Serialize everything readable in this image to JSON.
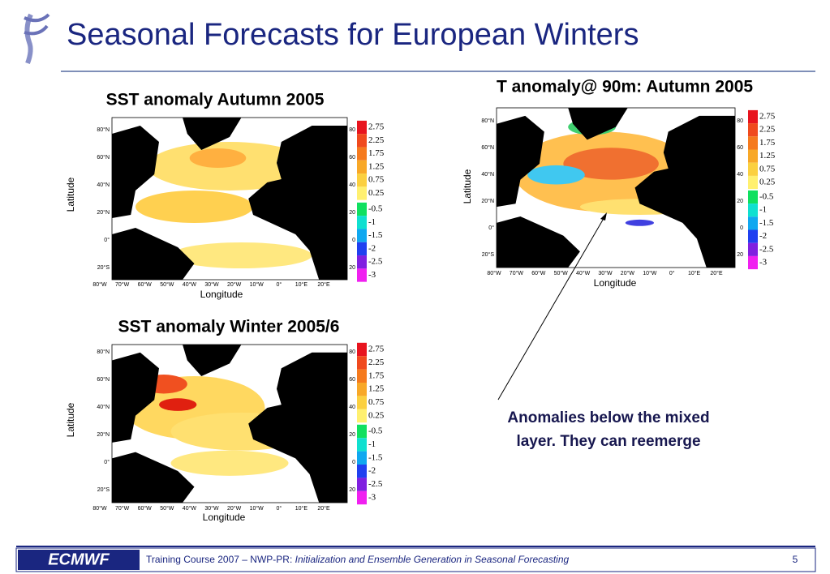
{
  "header": {
    "title": "Seasonal Forecasts for European Winters"
  },
  "panels": [
    {
      "title": "SST anomaly Autumn 2005",
      "ylabel": "Latitude",
      "xlabel": "Longitude",
      "lat_labels": [
        "80°N",
        "60°N",
        "40°N",
        "20°N",
        "0°",
        "20°S"
      ],
      "lat_right": [
        "80",
        "60",
        "40",
        "20",
        "0",
        "20"
      ],
      "lon_labels": [
        "80°W",
        "70°W",
        "60°W",
        "50°W",
        "40°W",
        "30°W",
        "20°W",
        "10°W",
        "0°",
        "10°E",
        "20°E"
      ],
      "warm": [
        "2.75",
        "2.25",
        "1.75",
        "1.25",
        "0.75",
        "0.25"
      ],
      "cold": [
        "-0.5",
        "-1",
        "-1.5",
        "-2",
        "-2.5",
        "-3"
      ]
    },
    {
      "title": "SST anomaly Winter 2005/6",
      "ylabel": "Latitude",
      "xlabel": "Longitude",
      "lat_labels": [
        "80°N",
        "60°N",
        "40°N",
        "20°N",
        "0°",
        "20°S"
      ],
      "lat_right": [
        "80",
        "60",
        "40",
        "20",
        "0",
        "20"
      ],
      "lon_labels": [
        "80°W",
        "70°W",
        "60°W",
        "50°W",
        "40°W",
        "30°W",
        "20°W",
        "10°W",
        "0°",
        "10°E",
        "20°E"
      ],
      "warm": [
        "2.75",
        "2.25",
        "1.75",
        "1.25",
        "0.75",
        "0.25"
      ],
      "cold": [
        "-0.5",
        "-1",
        "-1.5",
        "-2",
        "-2.5",
        "-3"
      ]
    },
    {
      "title": "T anomaly@ 90m: Autumn 2005",
      "ylabel": "Latitude",
      "xlabel": "Longitude",
      "lat_labels": [
        "80°N",
        "60°N",
        "40°N",
        "20°N",
        "0°",
        "20°S"
      ],
      "lat_right": [
        "80",
        "60",
        "40",
        "20",
        "0",
        "20"
      ],
      "lon_labels": [
        "80°W",
        "70°W",
        "60°W",
        "50°W",
        "40°W",
        "30°W",
        "20°W",
        "10°W",
        "0°",
        "10°E",
        "20°E"
      ],
      "warm": [
        "2.75",
        "2.25",
        "1.75",
        "1.25",
        "0.75",
        "0.25"
      ],
      "cold": [
        "-0.5",
        "-1",
        "-1.5",
        "-2",
        "-2.5",
        "-3"
      ]
    }
  ],
  "annotation": {
    "lines": [
      "Anomalies below the mixed",
      "layer. They can reemerge"
    ]
  },
  "footer": {
    "logo": "ECMWF",
    "course": "Training Course 2007 – NWP-PR: ",
    "subject": "Initialization and Ensemble Generation  in Seasonal Forecasting",
    "page": "5"
  }
}
